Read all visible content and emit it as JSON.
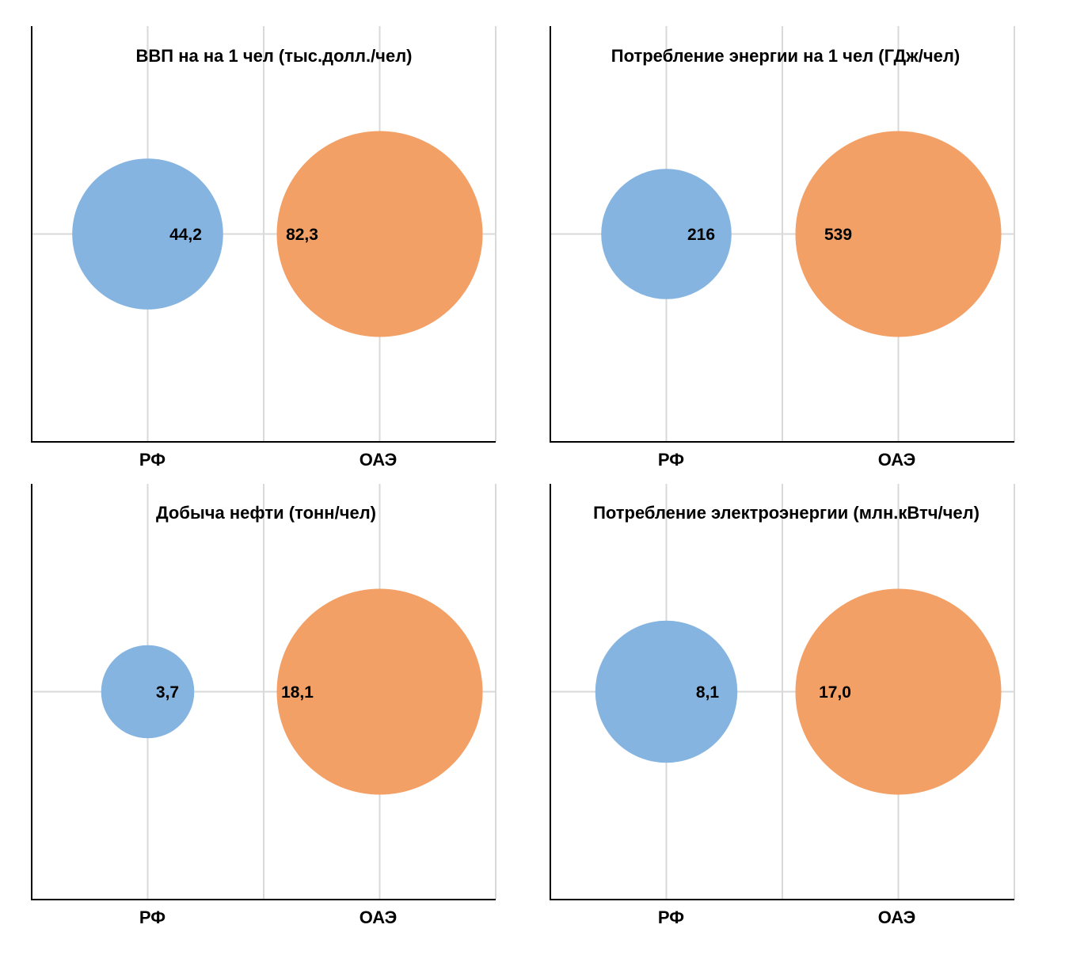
{
  "chart_data": [
    {
      "type": "bubble",
      "title": "ВВП на на 1 чел (тыс.долл./чел)",
      "categories": [
        "РФ",
        "ОАЭ"
      ],
      "series": [
        {
          "name": "",
          "x": "РФ",
          "value": 44.2,
          "label": "44,2",
          "color": "#85b4e0"
        },
        {
          "name": "",
          "x": "ОАЭ",
          "value": 82.3,
          "label": "82,3",
          "color": "#f2a066"
        }
      ],
      "grid": true
    },
    {
      "type": "bubble",
      "title": "Потребление  энергии на 1 чел (ГДж/чел)",
      "categories": [
        "РФ",
        "ОАЭ"
      ],
      "series": [
        {
          "name": "",
          "x": "РФ",
          "value": 216,
          "label": "216",
          "color": "#85b4e0"
        },
        {
          "name": "",
          "x": "ОАЭ",
          "value": 539,
          "label": "539",
          "color": "#f2a066"
        }
      ],
      "grid": true
    },
    {
      "type": "bubble",
      "title": "Добыча нефти (тонн/чел)",
      "categories": [
        "РФ",
        "ОАЭ"
      ],
      "series": [
        {
          "name": "",
          "x": "РФ",
          "value": 3.7,
          "label": "3,7",
          "color": "#85b4e0"
        },
        {
          "name": "",
          "x": "ОАЭ",
          "value": 18.1,
          "label": "18,1",
          "color": "#f2a066"
        }
      ],
      "grid": true
    },
    {
      "type": "bubble",
      "title": "Потребление электроэнергии (млн.кВтч/чел)",
      "categories": [
        "РФ",
        "ОАЭ"
      ],
      "series": [
        {
          "name": "",
          "x": "РФ",
          "value": 8.1,
          "label": "8,1",
          "color": "#85b4e0"
        },
        {
          "name": "",
          "x": "ОАЭ",
          "value": 17.0,
          "label": "17,0",
          "color": "#f2a066"
        }
      ],
      "grid": true
    }
  ]
}
